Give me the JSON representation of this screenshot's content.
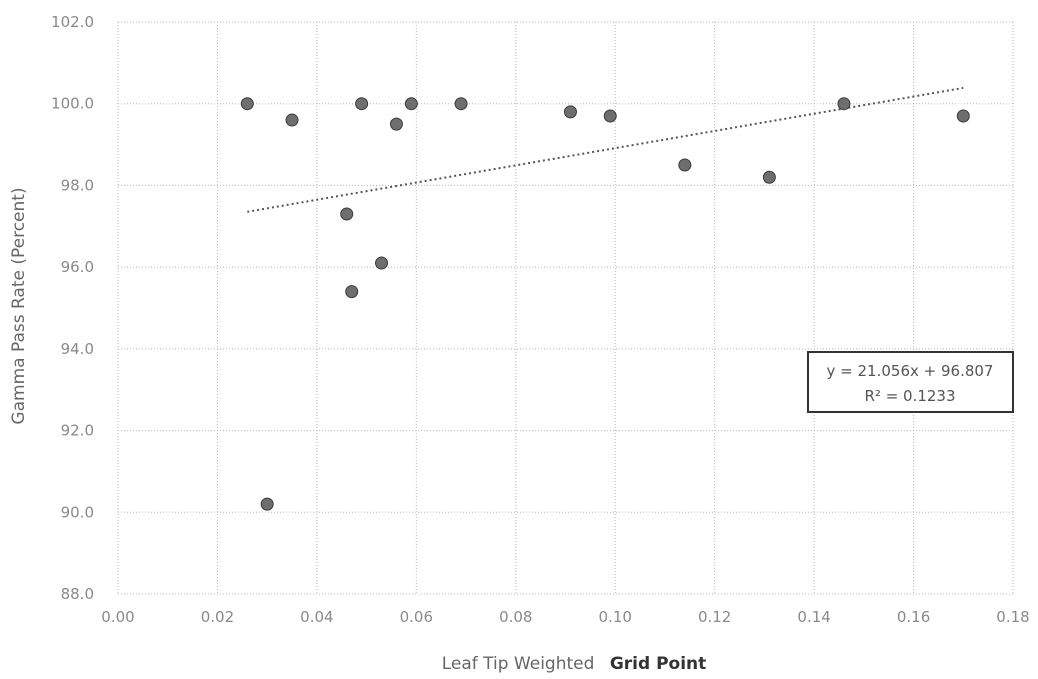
{
  "chart_data": {
    "type": "scatter",
    "title": "",
    "xlabel_prefix": "Leaf Tip Weighted",
    "xlabel_suffix": "Grid Point",
    "ylabel": "Gamma Pass Rate (Percent)",
    "xlim": [
      0,
      0.18
    ],
    "ylim": [
      88,
      102
    ],
    "x_ticks": [
      0.0,
      0.02,
      0.04,
      0.06,
      0.08,
      0.1,
      0.12,
      0.14,
      0.16,
      0.18
    ],
    "y_ticks": [
      88,
      90,
      92,
      94,
      96,
      98,
      100,
      102
    ],
    "x_tick_labels": [
      "0.00",
      "0.02",
      "0.04",
      "0.06",
      "0.08",
      "0.10",
      "0.12",
      "0.14",
      "0.16",
      "0.18"
    ],
    "y_tick_labels": [
      "88.0",
      "90.0",
      "92.0",
      "94.0",
      "96.0",
      "98.0",
      "100.0",
      "102.0"
    ],
    "grid": true,
    "series": [
      {
        "points": [
          {
            "x": 0.026,
            "y": 100.0
          },
          {
            "x": 0.03,
            "y": 90.2
          },
          {
            "x": 0.035,
            "y": 99.6
          },
          {
            "x": 0.046,
            "y": 97.3
          },
          {
            "x": 0.047,
            "y": 95.4
          },
          {
            "x": 0.049,
            "y": 100.0
          },
          {
            "x": 0.053,
            "y": 96.1
          },
          {
            "x": 0.056,
            "y": 99.5
          },
          {
            "x": 0.059,
            "y": 100.0
          },
          {
            "x": 0.069,
            "y": 100.0
          },
          {
            "x": 0.091,
            "y": 99.8
          },
          {
            "x": 0.099,
            "y": 99.7
          },
          {
            "x": 0.114,
            "y": 98.5
          },
          {
            "x": 0.131,
            "y": 98.2
          },
          {
            "x": 0.146,
            "y": 100.0
          },
          {
            "x": 0.17,
            "y": 99.7
          }
        ]
      }
    ],
    "trendline": {
      "slope": 21.056,
      "intercept": 96.807,
      "x_range": [
        0.026,
        0.17
      ],
      "equation_text": "y = 21.056x + 96.807",
      "r2_text": "R² = 0.1233",
      "box_position": "right-middle"
    }
  }
}
